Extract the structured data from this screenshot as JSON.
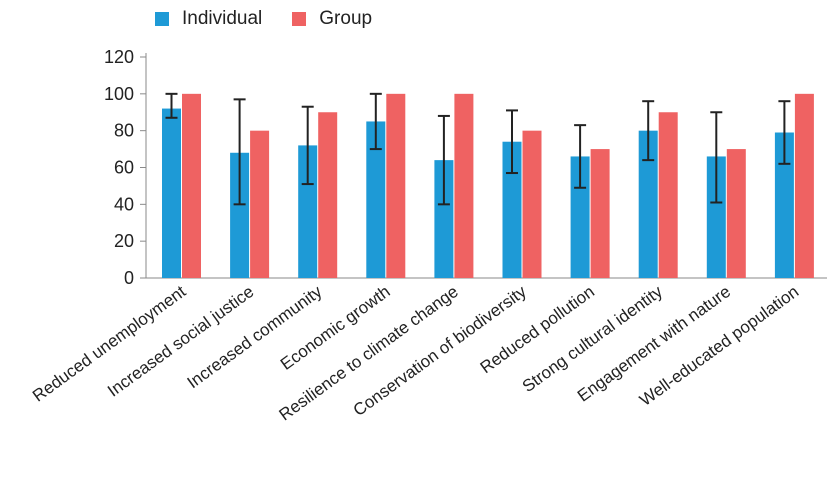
{
  "chart_data": {
    "type": "bar",
    "title": "",
    "xlabel": "",
    "ylabel": "",
    "ylim": [
      0,
      120
    ],
    "yticks": [
      0,
      20,
      40,
      60,
      80,
      100,
      120
    ],
    "grid": false,
    "legend_position": "top-left",
    "categories": [
      "Reduced unemployment",
      "Increased social justice",
      "Increased community",
      "Economic growth",
      "Resilience to climate change",
      "Conservation of biodiversity",
      "Reduced pollution",
      "Strong cultural identity",
      "Engagement with nature",
      "Well-educated population"
    ],
    "series": [
      {
        "name": "Individual",
        "color": "#1e9ad6",
        "values": [
          92,
          68,
          72,
          85,
          64,
          74,
          66,
          80,
          66,
          79
        ],
        "error_low": [
          87,
          40,
          51,
          70,
          40,
          57,
          49,
          64,
          41,
          62
        ],
        "error_high": [
          100,
          97,
          93,
          100,
          88,
          91,
          83,
          96,
          90,
          96
        ]
      },
      {
        "name": "Group",
        "color": "#ef6262",
        "values": [
          100,
          80,
          90,
          100,
          100,
          80,
          70,
          90,
          70,
          100
        ]
      }
    ]
  }
}
